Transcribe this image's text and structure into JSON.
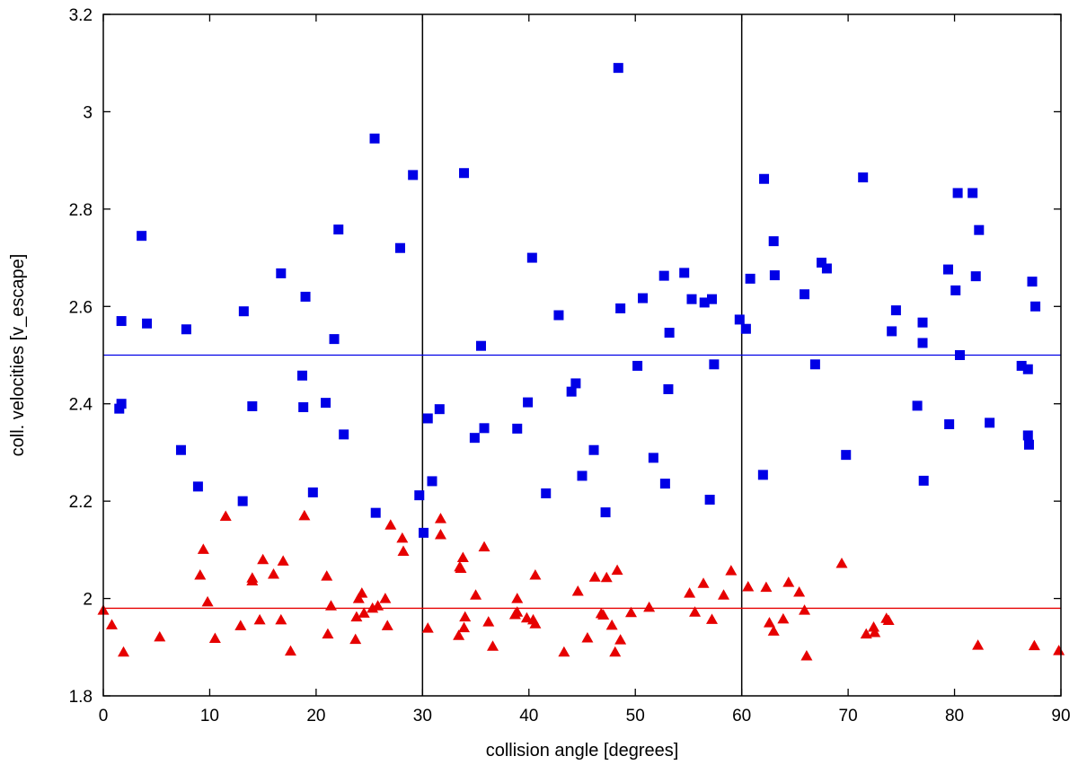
{
  "chart_data": {
    "type": "scatter",
    "title": "",
    "xlabel": "collision angle [degrees]",
    "ylabel": "coll. velocities [v_escape]",
    "xlim": [
      0,
      90
    ],
    "ylim": [
      1.8,
      3.2
    ],
    "xticks": [
      "0",
      "10",
      "20",
      "30",
      "40",
      "50",
      "60",
      "70",
      "80",
      "90"
    ],
    "yticks": [
      "1.8",
      "2",
      "2.2",
      "2.4",
      "2.6",
      "2.8",
      "3",
      "3.2"
    ],
    "grid": false,
    "legend": "none",
    "vertical_lines": [
      30,
      60
    ],
    "series": [
      {
        "marker": "square",
        "color": "#0000e6",
        "mean_line": 2.5,
        "points": [
          [
            1.5,
            2.39
          ],
          [
            1.7,
            2.4
          ],
          [
            1.7,
            2.57
          ],
          [
            3.6,
            2.745
          ],
          [
            4.1,
            2.565
          ],
          [
            7.3,
            2.305
          ],
          [
            7.8,
            2.553
          ],
          [
            8.9,
            2.23
          ],
          [
            13.1,
            2.2
          ],
          [
            13.2,
            2.59
          ],
          [
            14.0,
            2.395
          ],
          [
            16.7,
            2.668
          ],
          [
            18.7,
            2.458
          ],
          [
            18.8,
            2.393
          ],
          [
            19.0,
            2.62
          ],
          [
            19.7,
            2.218
          ],
          [
            20.9,
            2.402
          ],
          [
            21.7,
            2.533
          ],
          [
            22.1,
            2.758
          ],
          [
            22.6,
            2.337
          ],
          [
            25.5,
            2.945
          ],
          [
            25.6,
            2.176
          ],
          [
            27.9,
            2.72
          ],
          [
            29.1,
            2.87
          ],
          [
            29.7,
            2.212
          ],
          [
            30.1,
            2.135
          ],
          [
            30.5,
            2.37
          ],
          [
            30.9,
            2.241
          ],
          [
            31.6,
            2.389
          ],
          [
            34.9,
            2.33
          ],
          [
            33.9,
            2.874
          ],
          [
            35.5,
            2.519
          ],
          [
            35.8,
            2.35
          ],
          [
            38.9,
            2.349
          ],
          [
            39.9,
            2.403
          ],
          [
            40.3,
            2.7
          ],
          [
            41.6,
            2.216
          ],
          [
            42.8,
            2.582
          ],
          [
            44.0,
            2.425
          ],
          [
            44.4,
            2.442
          ],
          [
            45.0,
            2.252
          ],
          [
            46.1,
            2.305
          ],
          [
            47.2,
            2.177
          ],
          [
            48.4,
            3.09
          ],
          [
            48.6,
            2.596
          ],
          [
            50.2,
            2.478
          ],
          [
            50.7,
            2.617
          ],
          [
            51.7,
            2.289
          ],
          [
            52.7,
            2.663
          ],
          [
            52.8,
            2.236
          ],
          [
            53.1,
            2.43
          ],
          [
            53.2,
            2.546
          ],
          [
            54.6,
            2.669
          ],
          [
            55.3,
            2.615
          ],
          [
            56.5,
            2.608
          ],
          [
            57.0,
            2.203
          ],
          [
            57.2,
            2.615
          ],
          [
            57.4,
            2.481
          ],
          [
            59.8,
            2.573
          ],
          [
            60.4,
            2.554
          ],
          [
            60.8,
            2.657
          ],
          [
            62.0,
            2.254
          ],
          [
            62.1,
            2.862
          ],
          [
            63.0,
            2.734
          ],
          [
            63.1,
            2.664
          ],
          [
            65.9,
            2.625
          ],
          [
            66.9,
            2.481
          ],
          [
            67.5,
            2.69
          ],
          [
            68.0,
            2.678
          ],
          [
            69.8,
            2.295
          ],
          [
            71.4,
            2.865
          ],
          [
            74.1,
            2.549
          ],
          [
            74.5,
            2.592
          ],
          [
            76.5,
            2.396
          ],
          [
            77.0,
            2.567
          ],
          [
            77.0,
            2.525
          ],
          [
            77.1,
            2.242
          ],
          [
            79.4,
            2.676
          ],
          [
            79.5,
            2.358
          ],
          [
            80.1,
            2.633
          ],
          [
            80.3,
            2.833
          ],
          [
            80.5,
            2.5
          ],
          [
            81.7,
            2.833
          ],
          [
            82.0,
            2.662
          ],
          [
            82.3,
            2.757
          ],
          [
            83.3,
            2.361
          ],
          [
            86.3,
            2.478
          ],
          [
            86.9,
            2.335
          ],
          [
            86.9,
            2.471
          ],
          [
            87.0,
            2.316
          ],
          [
            87.3,
            2.651
          ],
          [
            87.6,
            2.6
          ]
        ]
      },
      {
        "marker": "triangle",
        "color": "#e60000",
        "mean_line": 1.98,
        "points": [
          [
            0.0,
            1.976
          ],
          [
            0.8,
            1.946
          ],
          [
            1.9,
            1.89
          ],
          [
            5.3,
            1.921
          ],
          [
            9.1,
            2.048
          ],
          [
            9.4,
            2.101
          ],
          [
            9.8,
            1.993
          ],
          [
            10.5,
            1.918
          ],
          [
            11.5,
            2.169
          ],
          [
            12.9,
            1.944
          ],
          [
            14.0,
            2.036
          ],
          [
            14.0,
            2.042
          ],
          [
            14.7,
            1.956
          ],
          [
            15.0,
            2.08
          ],
          [
            16.0,
            2.05
          ],
          [
            16.7,
            1.956
          ],
          [
            16.9,
            2.077
          ],
          [
            17.6,
            1.892
          ],
          [
            18.9,
            2.17
          ],
          [
            21.0,
            2.046
          ],
          [
            21.1,
            1.927
          ],
          [
            21.4,
            1.985
          ],
          [
            23.7,
            1.916
          ],
          [
            23.8,
            1.962
          ],
          [
            24.0,
            2.0
          ],
          [
            24.3,
            2.011
          ],
          [
            24.5,
            1.97
          ],
          [
            25.3,
            1.98
          ],
          [
            25.8,
            1.985
          ],
          [
            26.5,
            2.0
          ],
          [
            26.7,
            1.944
          ],
          [
            27.0,
            2.151
          ],
          [
            28.1,
            2.124
          ],
          [
            28.2,
            2.097
          ],
          [
            30.5,
            1.939
          ],
          [
            31.7,
            2.164
          ],
          [
            31.7,
            2.131
          ],
          [
            33.4,
            1.924
          ],
          [
            33.5,
            2.065
          ],
          [
            33.6,
            2.062
          ],
          [
            33.8,
            2.084
          ],
          [
            33.9,
            1.94
          ],
          [
            34.0,
            1.962
          ],
          [
            35.0,
            2.007
          ],
          [
            35.8,
            2.106
          ],
          [
            36.2,
            1.952
          ],
          [
            36.6,
            1.902
          ],
          [
            38.7,
            1.967
          ],
          [
            38.9,
            2.0
          ],
          [
            38.9,
            1.972
          ],
          [
            39.8,
            1.96
          ],
          [
            40.4,
            1.956
          ],
          [
            40.6,
            1.948
          ],
          [
            40.6,
            2.048
          ],
          [
            43.3,
            1.89
          ],
          [
            44.6,
            2.015
          ],
          [
            45.5,
            1.919
          ],
          [
            46.2,
            2.044
          ],
          [
            46.8,
            1.969
          ],
          [
            47.0,
            1.966
          ],
          [
            47.3,
            2.043
          ],
          [
            47.8,
            1.945
          ],
          [
            48.1,
            1.89
          ],
          [
            48.3,
            2.058
          ],
          [
            48.6,
            1.915
          ],
          [
            49.6,
            1.971
          ],
          [
            51.3,
            1.982
          ],
          [
            55.1,
            2.011
          ],
          [
            55.6,
            1.972
          ],
          [
            56.4,
            2.031
          ],
          [
            57.2,
            1.957
          ],
          [
            58.3,
            2.007
          ],
          [
            59.0,
            2.057
          ],
          [
            60.6,
            2.024
          ],
          [
            62.3,
            2.023
          ],
          [
            62.6,
            1.95
          ],
          [
            63.0,
            1.933
          ],
          [
            63.9,
            1.958
          ],
          [
            64.4,
            2.033
          ],
          [
            65.4,
            2.013
          ],
          [
            65.9,
            1.976
          ],
          [
            66.1,
            1.882
          ],
          [
            69.4,
            2.072
          ],
          [
            71.7,
            1.927
          ],
          [
            72.4,
            1.941
          ],
          [
            72.5,
            1.93
          ],
          [
            73.6,
            1.959
          ],
          [
            73.8,
            1.955
          ],
          [
            82.2,
            1.904
          ],
          [
            87.5,
            1.903
          ],
          [
            89.8,
            1.893
          ]
        ]
      }
    ]
  }
}
